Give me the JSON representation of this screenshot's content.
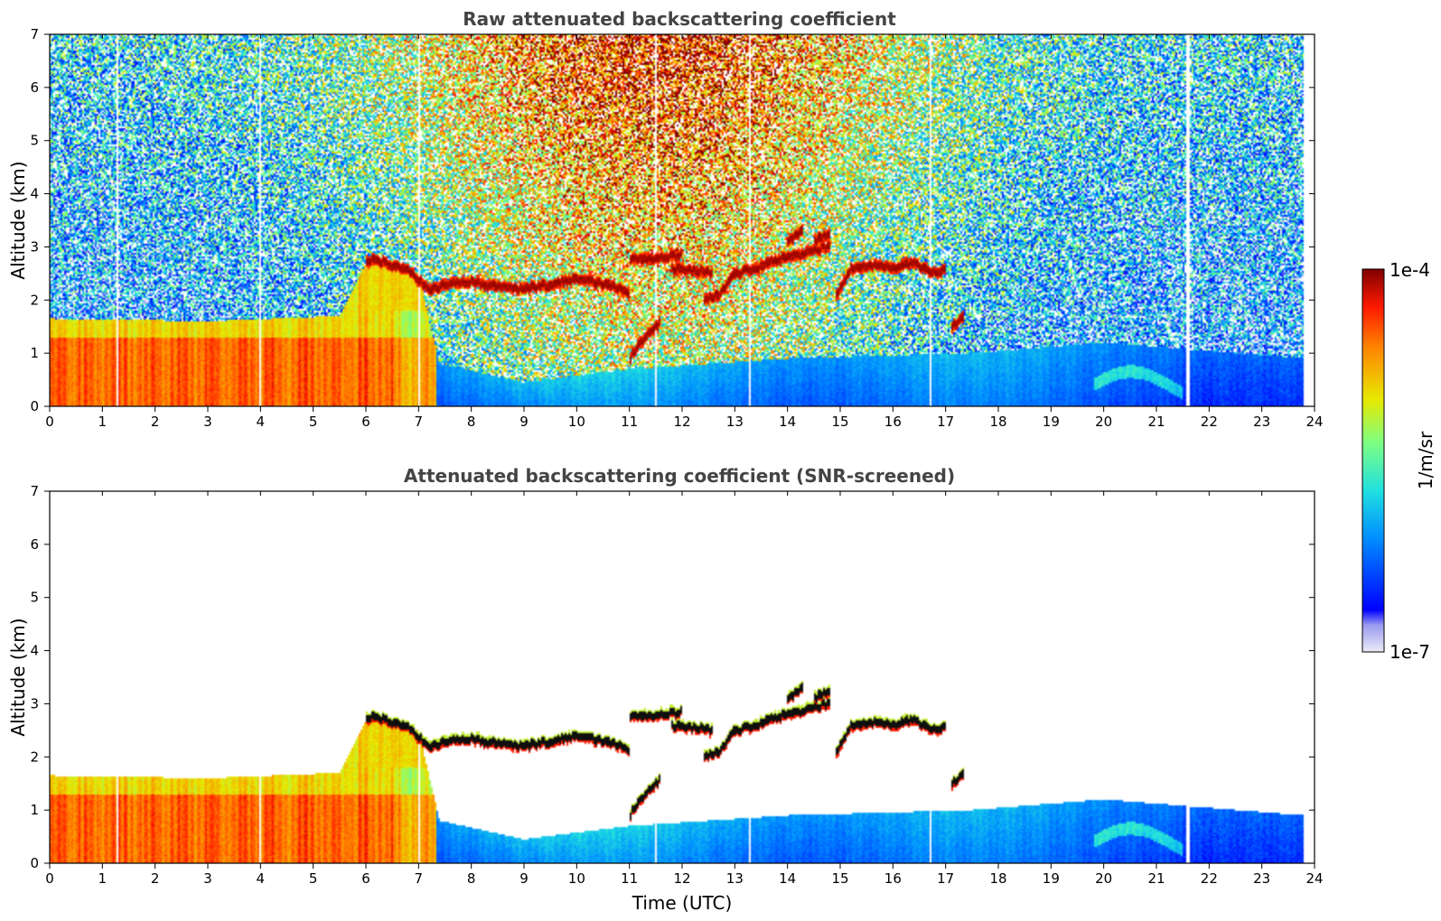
{
  "chart_data": [
    {
      "type": "heatmap",
      "title": "Raw attenuated backscattering coefficient",
      "xlabel": "",
      "ylabel": "Altitude (km)",
      "xlim": [
        0,
        24
      ],
      "ylim": [
        0,
        7
      ],
      "xticks": [
        "0",
        "1",
        "2",
        "3",
        "4",
        "5",
        "6",
        "7",
        "8",
        "9",
        "10",
        "11",
        "12",
        "13",
        "14",
        "15",
        "16",
        "17",
        "18",
        "19",
        "20",
        "21",
        "22",
        "23",
        "24"
      ],
      "yticks": [
        "0",
        "1",
        "2",
        "3",
        "4",
        "5",
        "6",
        "7"
      ],
      "screened": false,
      "data_end_hour": 23.8,
      "gap_hours": [
        1.3,
        4.0,
        7.0,
        11.5,
        13.3,
        16.7,
        21.6
      ],
      "aerosol_layer": [
        {
          "x": 0,
          "top_km": 1.65
        },
        {
          "x": 3,
          "top_km": 1.6
        },
        {
          "x": 5.5,
          "top_km": 1.7
        },
        {
          "x": 6.0,
          "top_km": 2.7
        },
        {
          "x": 7.0,
          "top_km": 2.5
        },
        {
          "x": 7.4,
          "top_km": 0.8
        },
        {
          "x": 9,
          "top_km": 0.45
        },
        {
          "x": 11,
          "top_km": 0.7
        },
        {
          "x": 14,
          "top_km": 0.9
        },
        {
          "x": 17.5,
          "top_km": 1.0
        },
        {
          "x": 20,
          "top_km": 1.2
        },
        {
          "x": 23.8,
          "top_km": 0.9
        }
      ],
      "cloud_layers": [
        {
          "x": [
            6.0,
            6.4,
            6.8,
            7.2,
            7.6,
            8.0,
            8.5,
            9.0,
            9.5,
            10.0,
            10.5,
            11.0
          ],
          "y_km": [
            2.75,
            2.7,
            2.55,
            2.2,
            2.3,
            2.35,
            2.25,
            2.2,
            2.3,
            2.4,
            2.3,
            2.15
          ]
        },
        {
          "x": [
            11.0,
            11.5,
            12.0
          ],
          "y_km": [
            2.75,
            2.8,
            2.85
          ]
        },
        {
          "x": [
            11.8,
            12.2,
            12.6
          ],
          "y_km": [
            2.6,
            2.55,
            2.5
          ]
        },
        {
          "x": [
            12.4,
            12.7,
            13.0,
            13.4,
            13.8,
            14.2,
            14.5,
            14.8
          ],
          "y_km": [
            2.0,
            2.1,
            2.5,
            2.6,
            2.75,
            2.85,
            2.95,
            3.0
          ]
        },
        {
          "x": [
            14.0,
            14.3
          ],
          "y_km": [
            3.1,
            3.3
          ]
        },
        {
          "x": [
            14.5,
            14.8
          ],
          "y_km": [
            3.1,
            3.25
          ]
        },
        {
          "x": [
            14.9,
            15.2,
            15.6,
            16.0,
            16.4,
            16.8,
            17.0
          ],
          "y_km": [
            2.0,
            2.6,
            2.65,
            2.6,
            2.7,
            2.5,
            2.6
          ]
        },
        {
          "x": [
            17.1,
            17.35
          ],
          "y_km": [
            1.5,
            1.7
          ]
        },
        {
          "x": [
            11.0,
            11.3,
            11.6
          ],
          "y_km": [
            0.9,
            1.3,
            1.6
          ]
        }
      ]
    },
    {
      "type": "heatmap",
      "title": "Attenuated backscattering coefficient (SNR-screened)",
      "xlabel": "Time (UTC)",
      "ylabel": "Altitude (km)",
      "xlim": [
        0,
        24
      ],
      "ylim": [
        0,
        7
      ],
      "xticks": [
        "0",
        "1",
        "2",
        "3",
        "4",
        "5",
        "6",
        "7",
        "8",
        "9",
        "10",
        "11",
        "12",
        "13",
        "14",
        "15",
        "16",
        "17",
        "18",
        "19",
        "20",
        "21",
        "22",
        "23",
        "24"
      ],
      "yticks": [
        "0",
        "1",
        "2",
        "3",
        "4",
        "5",
        "6",
        "7"
      ],
      "screened": true
    }
  ],
  "colorbar": {
    "label": "1/m/sr",
    "max_label": "1e-4",
    "min_label": "1e-7",
    "scale": "log",
    "colormap": "jet",
    "colors": [
      "#e8e8f8",
      "#0000ff",
      "#00a0ff",
      "#20e0e0",
      "#80ff80",
      "#e8e800",
      "#ff8000",
      "#ff2000",
      "#7f0000"
    ]
  }
}
